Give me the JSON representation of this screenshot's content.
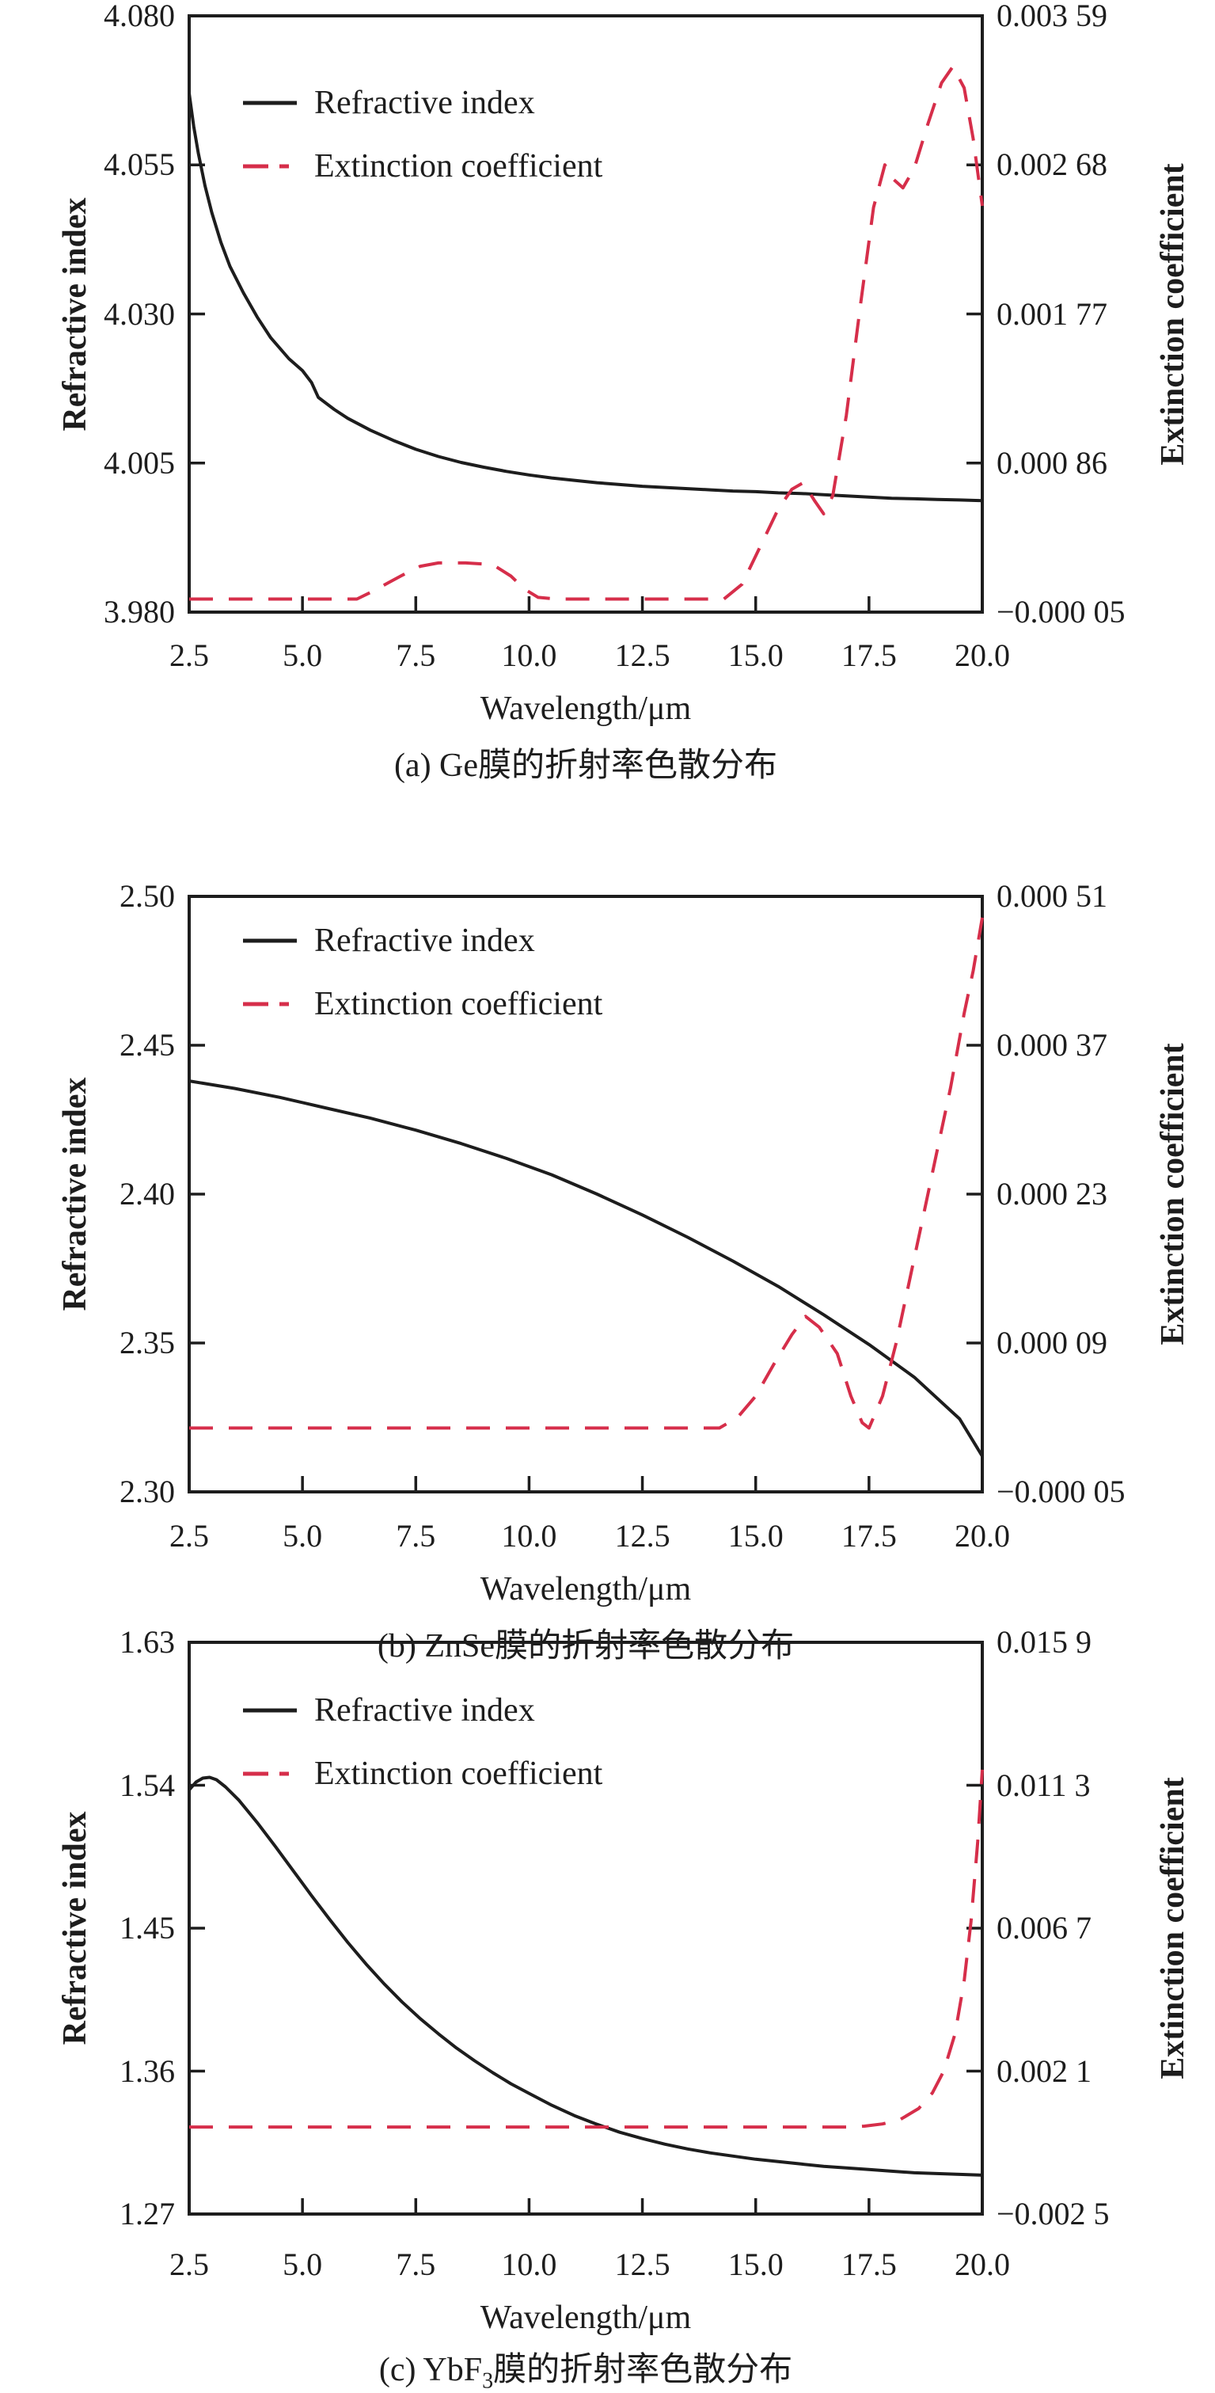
{
  "figure": {
    "background": "#ffffff",
    "colors": {
      "refractive_index": "#1d1d1d",
      "extinction_coefficient": "#d62e4a",
      "axis": "#1d1d1d"
    },
    "legend": {
      "refractive_index": "Refractive index",
      "extinction_coefficient": "Extinction coefficient"
    },
    "x_axis": {
      "label": "Wavelength/μm",
      "range": [
        2.5,
        20.0
      ],
      "ticks": [
        "2.5",
        "5.0",
        "7.5",
        "10.0",
        "12.5",
        "15.0",
        "17.5",
        "20.0"
      ]
    }
  },
  "chart_data": [
    {
      "id": "a",
      "type": "line",
      "title": "(a) Ge膜的折射率色散分布",
      "caption_prefix": "(a) Ge",
      "caption_sub": "",
      "caption_suffix": "膜的折射率色散分布",
      "xlabel": "Wavelength/μm",
      "ylabel_left": "Refractive index",
      "ylabel_right": "Extinction coefficient",
      "xlim": [
        2.5,
        20.0
      ],
      "ylim_left": [
        3.98,
        4.08
      ],
      "ylim_right": [
        -5e-05,
        0.00359
      ],
      "yticks_left": [
        "4.080",
        "4.055",
        "4.030",
        "4.005",
        "3.980"
      ],
      "yticks_right": [
        "0.003 59",
        "0.002 68",
        "0.001 77",
        "0.000 86",
        "−0.000 05"
      ],
      "grid": false,
      "legend_position": "upper-left-inside",
      "series": [
        {
          "name": "Refractive index",
          "axis": "left",
          "style": "solid",
          "points": [
            [
              2.5,
              4.067
            ],
            [
              2.6,
              4.0615
            ],
            [
              2.7,
              4.057
            ],
            [
              2.85,
              4.0515
            ],
            [
              3.0,
              4.047
            ],
            [
              3.2,
              4.042
            ],
            [
              3.4,
              4.038
            ],
            [
              3.7,
              4.0335
            ],
            [
              4.0,
              4.0295
            ],
            [
              4.3,
              4.026
            ],
            [
              4.7,
              4.0225
            ],
            [
              5.0,
              4.0205
            ],
            [
              5.2,
              4.0185
            ],
            [
              5.35,
              4.016
            ],
            [
              5.7,
              4.014
            ],
            [
              6.0,
              4.0125
            ],
            [
              6.5,
              4.0105
            ],
            [
              7.0,
              4.0088
            ],
            [
              7.5,
              4.0073
            ],
            [
              8.0,
              4.0061
            ],
            [
              8.5,
              4.0051
            ],
            [
              9.0,
              4.0043
            ],
            [
              9.5,
              4.0036
            ],
            [
              10.0,
              4.003
            ],
            [
              10.5,
              4.0025
            ],
            [
              11.0,
              4.0021
            ],
            [
              11.5,
              4.0017
            ],
            [
              12.0,
              4.0014
            ],
            [
              12.5,
              4.0011
            ],
            [
              13.0,
              4.0009
            ],
            [
              13.5,
              4.0007
            ],
            [
              14.0,
              4.0005
            ],
            [
              14.5,
              4.0003
            ],
            [
              15.0,
              4.0002
            ],
            [
              15.5,
              4.0
            ],
            [
              16.0,
              3.9999
            ],
            [
              16.5,
              3.9997
            ],
            [
              17.0,
              3.9995
            ],
            [
              17.5,
              3.9993
            ],
            [
              18.0,
              3.9991
            ],
            [
              18.5,
              3.999
            ],
            [
              19.0,
              3.9989
            ],
            [
              19.5,
              3.9988
            ],
            [
              20.0,
              3.9987
            ]
          ]
        },
        {
          "name": "Extinction coefficient",
          "axis": "right",
          "style": "dashed",
          "points": [
            [
              2.5,
              3e-05
            ],
            [
              6.2,
              3e-05
            ],
            [
              6.5,
              7e-05
            ],
            [
              6.9,
              0.00013
            ],
            [
              7.3,
              0.00019
            ],
            [
              7.6,
              0.00023
            ],
            [
              8.0,
              0.00025
            ],
            [
              8.6,
              0.00025
            ],
            [
              9.2,
              0.00024
            ],
            [
              9.6,
              0.00017
            ],
            [
              9.9,
              9e-05
            ],
            [
              10.2,
              4e-05
            ],
            [
              10.6,
              3e-05
            ],
            [
              14.3,
              3e-05
            ],
            [
              14.7,
              0.00012
            ],
            [
              15.1,
              0.00035
            ],
            [
              15.5,
              0.00058
            ],
            [
              15.8,
              0.0007
            ],
            [
              16.05,
              0.00074
            ],
            [
              16.3,
              0.00063
            ],
            [
              16.5,
              0.00055
            ],
            [
              16.7,
              0.00066
            ],
            [
              17.0,
              0.00115
            ],
            [
              17.3,
              0.0018
            ],
            [
              17.6,
              0.00242
            ],
            [
              17.85,
              0.00268
            ],
            [
              18.05,
              0.00259
            ],
            [
              18.25,
              0.00254
            ],
            [
              18.5,
              0.00266
            ],
            [
              18.8,
              0.00293
            ],
            [
              19.1,
              0.00318
            ],
            [
              19.35,
              0.00328
            ],
            [
              19.6,
              0.00315
            ],
            [
              19.8,
              0.00284
            ],
            [
              20.0,
              0.00243
            ]
          ]
        }
      ]
    },
    {
      "id": "b",
      "type": "line",
      "title": "(b) ZnSe膜的折射率色散分布",
      "caption_prefix": "(b) ZnSe",
      "caption_sub": "",
      "caption_suffix": "膜的折射率色散分布",
      "xlabel": "Wavelength/μm",
      "ylabel_left": "Refractive index",
      "ylabel_right": "Extinction coefficient",
      "xlim": [
        2.5,
        20.0
      ],
      "ylim_left": [
        2.3,
        2.5
      ],
      "ylim_right": [
        -5e-05,
        0.00051
      ],
      "yticks_left": [
        "2.50",
        "2.45",
        "2.40",
        "2.35",
        "2.30"
      ],
      "yticks_right": [
        "0.000 51",
        "0.000 37",
        "0.000 23",
        "0.000 09",
        "−0.000 05"
      ],
      "grid": false,
      "legend_position": "upper-left-inside",
      "series": [
        {
          "name": "Refractive index",
          "axis": "left",
          "style": "solid",
          "points": [
            [
              2.5,
              2.438
            ],
            [
              3.5,
              2.4355
            ],
            [
              4.5,
              2.4325
            ],
            [
              5.5,
              2.429
            ],
            [
              6.5,
              2.4255
            ],
            [
              7.5,
              2.4215
            ],
            [
              8.5,
              2.417
            ],
            [
              9.5,
              2.412
            ],
            [
              10.5,
              2.4065
            ],
            [
              11.5,
              2.4
            ],
            [
              12.5,
              2.393
            ],
            [
              13.5,
              2.3855
            ],
            [
              14.5,
              2.3775
            ],
            [
              15.5,
              2.369
            ],
            [
              16.5,
              2.3595
            ],
            [
              17.5,
              2.3495
            ],
            [
              18.5,
              2.3385
            ],
            [
              19.5,
              2.3245
            ],
            [
              20.0,
              2.312
            ]
          ]
        },
        {
          "name": "Extinction coefficient",
          "axis": "right",
          "style": "dashed",
          "points": [
            [
              2.5,
              1e-05
            ],
            [
              14.2,
              1e-05
            ],
            [
              14.6,
              2e-05
            ],
            [
              15.0,
              4e-05
            ],
            [
              15.4,
              7e-05
            ],
            [
              15.8,
              9.8e-05
            ],
            [
              16.1,
              0.000115
            ],
            [
              16.4,
              0.000105
            ],
            [
              16.8,
              8e-05
            ],
            [
              17.1,
              4e-05
            ],
            [
              17.35,
              1.5e-05
            ],
            [
              17.5,
              1e-05
            ],
            [
              17.8,
              4e-05
            ],
            [
              18.1,
              9e-05
            ],
            [
              18.4,
              0.00015
            ],
            [
              18.7,
              0.00021
            ],
            [
              19.0,
              0.00027
            ],
            [
              19.3,
              0.00033
            ],
            [
              19.6,
              0.0004
            ],
            [
              19.8,
              0.00044
            ],
            [
              20.0,
              0.00049
            ]
          ]
        }
      ]
    },
    {
      "id": "c",
      "type": "line",
      "title": "(c) YbF3膜的折射率色散分布",
      "caption_prefix": "(c) YbF",
      "caption_sub": "3",
      "caption_suffix": "膜的折射率色散分布",
      "xlabel": "Wavelength/μm",
      "ylabel_left": "Refractive index",
      "ylabel_right": "Extinction coefficient",
      "xlim": [
        2.5,
        20.0
      ],
      "ylim_left": [
        1.27,
        1.63
      ],
      "ylim_right": [
        -0.0025,
        0.0159
      ],
      "yticks_left": [
        "1.63",
        "1.54",
        "1.45",
        "1.36",
        "1.27"
      ],
      "yticks_right": [
        "0.015 9",
        "0.011 3",
        "0.006 7",
        "0.002 1",
        "−0.002 5"
      ],
      "grid": false,
      "legend_position": "upper-left-inside",
      "series": [
        {
          "name": "Refractive index",
          "axis": "left",
          "style": "solid",
          "points": [
            [
              2.5,
              1.537
            ],
            [
              2.65,
              1.542
            ],
            [
              2.8,
              1.5445
            ],
            [
              2.95,
              1.545
            ],
            [
              3.1,
              1.5435
            ],
            [
              3.3,
              1.539
            ],
            [
              3.6,
              1.5305
            ],
            [
              4.0,
              1.5165
            ],
            [
              4.4,
              1.5015
            ],
            [
              4.8,
              1.486
            ],
            [
              5.2,
              1.4705
            ],
            [
              5.6,
              1.4555
            ],
            [
              6.0,
              1.441
            ],
            [
              6.4,
              1.4275
            ],
            [
              6.8,
              1.415
            ],
            [
              7.2,
              1.4035
            ],
            [
              7.6,
              1.393
            ],
            [
              8.0,
              1.3835
            ],
            [
              8.4,
              1.3745
            ],
            [
              8.8,
              1.3665
            ],
            [
              9.2,
              1.359
            ],
            [
              9.6,
              1.352
            ],
            [
              10.0,
              1.346
            ],
            [
              10.5,
              1.3385
            ],
            [
              11.0,
              1.332
            ],
            [
              11.5,
              1.3265
            ],
            [
              12.0,
              1.3215
            ],
            [
              12.5,
              1.3175
            ],
            [
              13.0,
              1.314
            ],
            [
              13.5,
              1.311
            ],
            [
              14.0,
              1.3085
            ],
            [
              14.5,
              1.3065
            ],
            [
              15.0,
              1.3045
            ],
            [
              15.5,
              1.303
            ],
            [
              16.0,
              1.3015
            ],
            [
              16.5,
              1.3
            ],
            [
              17.0,
              1.299
            ],
            [
              17.5,
              1.298
            ],
            [
              18.0,
              1.297
            ],
            [
              18.5,
              1.296
            ],
            [
              19.0,
              1.2955
            ],
            [
              19.5,
              1.295
            ],
            [
              20.0,
              1.2945
            ]
          ]
        },
        {
          "name": "Extinction coefficient",
          "axis": "right",
          "style": "dashed",
          "points": [
            [
              2.5,
              0.0003
            ],
            [
              17.0,
              0.0003
            ],
            [
              17.4,
              0.00033
            ],
            [
              17.8,
              0.0004
            ],
            [
              18.2,
              0.00055
            ],
            [
              18.6,
              0.0009
            ],
            [
              18.9,
              0.0014
            ],
            [
              19.15,
              0.0021
            ],
            [
              19.4,
              0.0033
            ],
            [
              19.6,
              0.005
            ],
            [
              19.75,
              0.0069
            ],
            [
              19.9,
              0.0095
            ],
            [
              20.0,
              0.0118
            ]
          ]
        }
      ]
    }
  ]
}
